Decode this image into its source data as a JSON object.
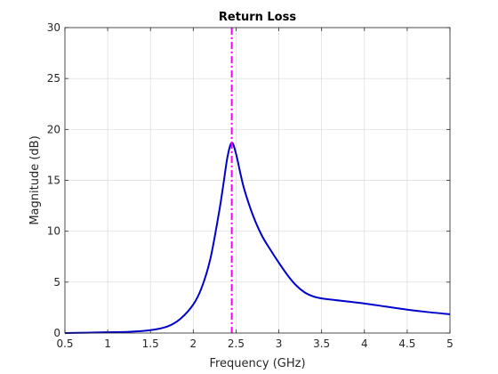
{
  "chart_data": {
    "type": "line",
    "title": "Return Loss",
    "xlabel": "Frequency (GHz)",
    "ylabel": "Magnitude (dB)",
    "xlim": [
      0.5,
      5
    ],
    "ylim": [
      0,
      30
    ],
    "xticks": [
      0.5,
      1,
      1.5,
      2,
      2.5,
      3,
      3.5,
      4,
      4.5,
      5
    ],
    "xtick_labels": [
      "0.5",
      "1",
      "1.5",
      "2",
      "2.5",
      "3",
      "3.5",
      "4",
      "4.5",
      "5"
    ],
    "yticks": [
      0,
      5,
      10,
      15,
      20,
      25,
      30
    ],
    "ytick_labels": [
      "0",
      "5",
      "10",
      "15",
      "20",
      "25",
      "30"
    ],
    "grid": true,
    "line_color": "#0000cd",
    "marker_color": "#ff00ff",
    "marker_x": 2.45,
    "series": [
      {
        "x": [
          0.5,
          0.75,
          1.0,
          1.25,
          1.5,
          1.7,
          1.85,
          2.0,
          2.1,
          2.2,
          2.3,
          2.35,
          2.4,
          2.45,
          2.5,
          2.55,
          2.6,
          2.7,
          2.8,
          2.9,
          3.0,
          3.1,
          3.2,
          3.3,
          3.4,
          3.5,
          3.75,
          4.0,
          4.25,
          4.5,
          4.75,
          5.0
        ],
        "values": [
          0.0,
          0.03,
          0.08,
          0.12,
          0.28,
          0.65,
          1.4,
          2.8,
          4.5,
          7.3,
          11.8,
          14.5,
          17.3,
          18.7,
          17.6,
          15.7,
          14.0,
          11.5,
          9.6,
          8.2,
          6.9,
          5.7,
          4.7,
          4.0,
          3.6,
          3.4,
          3.15,
          2.9,
          2.6,
          2.3,
          2.05,
          1.85
        ]
      }
    ]
  }
}
